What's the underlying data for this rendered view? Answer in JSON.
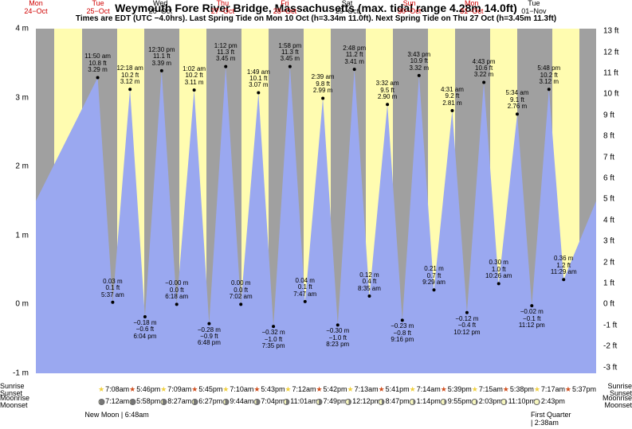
{
  "title": "Weymouth Fore River Bridge, Massachusetts (max. tidal range 4.28m 14.0ft)",
  "subtitle": "Times are EDT (UTC −4.0hrs). Last Spring Tide on Mon 10 Oct (h=3.34m 11.0ft). Next Spring Tide on Thu 27 Oct (h=3.45m 11.3ft)",
  "chart": {
    "type": "tide",
    "background_day": "#fffcb0",
    "background_night": "#a0a0a0",
    "tide_fill": "#9aa8f0",
    "title_fontsize": 14,
    "subtitle_fontsize": 10,
    "label_fontsize": 9,
    "axis_fontsize": 10,
    "y_axis_left": {
      "min": -1,
      "max": 4,
      "step": 1,
      "unit": "m"
    },
    "y_axis_right": {
      "min": -3,
      "max": 13,
      "step": 1,
      "unit": "ft"
    },
    "days": [
      {
        "top_line1": "Mon",
        "top_line2": "24−Oct",
        "top_color": "#d00000",
        "sunrise": "",
        "sunset": "",
        "moonrise": "",
        "moonset": ""
      },
      {
        "top_line1": "Tue",
        "top_line2": "25−Oct",
        "top_color": "#d00000",
        "sunrise": "7:08am",
        "sunset": "5:46pm",
        "moonrise": "7:12am",
        "moonset": "5:58pm"
      },
      {
        "top_line1": "Wed",
        "top_line2": "26−Oct",
        "top_color": "#000000",
        "sunrise": "7:09am",
        "sunset": "5:45pm",
        "moonrise": "8:27am",
        "moonset": "6:27pm"
      },
      {
        "top_line1": "Thu",
        "top_line2": "27−Oct",
        "top_color": "#d00000",
        "sunrise": "7:10am",
        "sunset": "5:43pm",
        "moonrise": "9:44am",
        "moonset": "7:04pm"
      },
      {
        "top_line1": "Fri",
        "top_line2": "28−Oct",
        "top_color": "#d00000",
        "sunrise": "7:12am",
        "sunset": "5:42pm",
        "moonrise": "11:01am",
        "moonset": "7:49pm"
      },
      {
        "top_line1": "Sat",
        "top_line2": "29−Oct",
        "top_color": "#000000",
        "sunrise": "7:13am",
        "sunset": "5:41pm",
        "moonrise": "12:12pm",
        "moonset": "8:47pm"
      },
      {
        "top_line1": "Sun",
        "top_line2": "30−Oct",
        "top_color": "#d00000",
        "sunrise": "7:14am",
        "sunset": "5:39pm",
        "moonrise": "1:14pm",
        "moonset": "9:55pm"
      },
      {
        "top_line1": "Mon",
        "top_line2": "31−Oct",
        "top_color": "#d00000",
        "sunrise": "7:15am",
        "sunset": "5:38pm",
        "moonrise": "2:03pm",
        "moonset": "11:10pm"
      },
      {
        "top_line1": "Tue",
        "top_line2": "01−Nov",
        "top_color": "#000000",
        "sunrise": "7:17am",
        "sunset": "5:37pm",
        "moonrise": "2:43pm",
        "moonset": ""
      }
    ],
    "sunrise_icon_color": "#f0d040",
    "sunset_icon_color": "#d05020",
    "moon_icon_fill": "#f8f8c0",
    "tide_points": [
      {
        "day": 0,
        "hour": 23.83,
        "h_m": 3.29,
        "labels": [
          "11:50 am",
          "10.8 ft",
          "3.29 m"
        ],
        "side": "top_above"
      },
      {
        "day": 1,
        "hour": 5.62,
        "h_m": 0.03,
        "labels": [
          "0.03 m",
          "0.1 ft",
          "5:37 am"
        ],
        "side": "bot_above"
      },
      {
        "day": 1,
        "hour": 12.3,
        "h_m": 3.12,
        "labels": [
          "12:18 am",
          "10.2 ft",
          "3.12 m"
        ],
        "side": "top_above"
      },
      {
        "day": 1,
        "hour": 18.07,
        "h_m": -0.18,
        "labels": [
          "−0.18 m",
          "−0.6 ft",
          "6:04 pm"
        ],
        "side": "bot_below"
      },
      {
        "day": 2,
        "hour": 0.5,
        "h_m": 3.39,
        "labels": [
          "12:30 pm",
          "11.1 ft",
          "3.39 m"
        ],
        "side": "top_above"
      },
      {
        "day": 2,
        "hour": 6.3,
        "h_m": 0.0,
        "labels": [
          "−0.00 m",
          "0.0 ft",
          "6:18 am"
        ],
        "side": "bot_above"
      },
      {
        "day": 2,
        "hour": 13.03,
        "h_m": 3.11,
        "labels": [
          "1:02 am",
          "10.2 ft",
          "3.11 m"
        ],
        "side": "top_above"
      },
      {
        "day": 2,
        "hour": 18.8,
        "h_m": -0.28,
        "labels": [
          "−0.28 m",
          "−0.9 ft",
          "6:48 pm"
        ],
        "side": "bot_below"
      },
      {
        "day": 3,
        "hour": 1.2,
        "h_m": 3.45,
        "labels": [
          "1:12 pm",
          "11.3 ft",
          "3.45 m"
        ],
        "side": "top_above"
      },
      {
        "day": 3,
        "hour": 7.03,
        "h_m": 0.0,
        "labels": [
          "0.00 m",
          "0.0 ft",
          "7:02 am"
        ],
        "side": "bot_above"
      },
      {
        "day": 3,
        "hour": 13.82,
        "h_m": 3.07,
        "labels": [
          "1:49 am",
          "10.1 ft",
          "3.07 m"
        ],
        "side": "top_above"
      },
      {
        "day": 3,
        "hour": 19.58,
        "h_m": -0.32,
        "labels": [
          "−0.32 m",
          "−1.0 ft",
          "7:35 pm"
        ],
        "side": "bot_below"
      },
      {
        "day": 4,
        "hour": 1.97,
        "h_m": 3.45,
        "labels": [
          "1:58 pm",
          "11.3 ft",
          "3.45 m"
        ],
        "side": "top_above"
      },
      {
        "day": 4,
        "hour": 7.78,
        "h_m": 0.04,
        "labels": [
          "0.04 m",
          "0.1 ft",
          "7:47 am"
        ],
        "side": "bot_above"
      },
      {
        "day": 4,
        "hour": 14.65,
        "h_m": 2.99,
        "labels": [
          "2:39 am",
          "9.8 ft",
          "2.99 m"
        ],
        "side": "top_above"
      },
      {
        "day": 4,
        "hour": 20.38,
        "h_m": -0.3,
        "labels": [
          "−0.30 m",
          "−1.0 ft",
          "8:23 pm"
        ],
        "side": "bot_below"
      },
      {
        "day": 5,
        "hour": 2.8,
        "h_m": 3.41,
        "labels": [
          "2:48 pm",
          "11.2 ft",
          "3.41 m"
        ],
        "side": "top_above"
      },
      {
        "day": 5,
        "hour": 8.58,
        "h_m": 0.12,
        "labels": [
          "0.12 m",
          "0.4 ft",
          "8:35 am"
        ],
        "side": "bot_above"
      },
      {
        "day": 5,
        "hour": 15.53,
        "h_m": 2.9,
        "labels": [
          "3:32 am",
          "9.5 ft",
          "2.90 m"
        ],
        "side": "top_above"
      },
      {
        "day": 5,
        "hour": 21.27,
        "h_m": -0.23,
        "labels": [
          "−0.23 m",
          "−0.8 ft",
          "9:16 pm"
        ],
        "side": "bot_below"
      },
      {
        "day": 6,
        "hour": 3.72,
        "h_m": 3.32,
        "labels": [
          "3:43 pm",
          "10.9 ft",
          "3.32 m"
        ],
        "side": "top_above"
      },
      {
        "day": 6,
        "hour": 9.48,
        "h_m": 0.21,
        "labels": [
          "0.21 m",
          "0.7 ft",
          "9:29 am"
        ],
        "side": "bot_above"
      },
      {
        "day": 6,
        "hour": 16.52,
        "h_m": 2.81,
        "labels": [
          "4:31 am",
          "9.2 ft",
          "2.81 m"
        ],
        "side": "top_above"
      },
      {
        "day": 6,
        "hour": 22.2,
        "h_m": -0.12,
        "labels": [
          "−0.12 m",
          "−0.4 ft",
          "10:12 pm"
        ],
        "side": "bot_below"
      },
      {
        "day": 7,
        "hour": 4.72,
        "h_m": 3.22,
        "labels": [
          "4:43 pm",
          "10.6 ft",
          "3.22 m"
        ],
        "side": "top_above"
      },
      {
        "day": 7,
        "hour": 10.43,
        "h_m": 0.3,
        "labels": [
          "0.30 m",
          "1.0 ft",
          "10:26 am"
        ],
        "side": "bot_above"
      },
      {
        "day": 7,
        "hour": 17.57,
        "h_m": 2.76,
        "labels": [
          "5:34 am",
          "9.1 ft",
          "2.76 m"
        ],
        "side": "top_above"
      },
      {
        "day": 7,
        "hour": 23.2,
        "h_m": -0.02,
        "labels": [
          "−0.02 m",
          "−0.1 ft",
          "11:12 pm"
        ],
        "side": "bot_below"
      },
      {
        "day": 8,
        "hour": 5.8,
        "h_m": 3.12,
        "labels": [
          "5:48 pm",
          "10.2 ft",
          "3.12 m"
        ],
        "side": "top_above"
      },
      {
        "day": 8,
        "hour": 11.48,
        "h_m": 0.36,
        "labels": [
          "0.36 m",
          "1.2 ft",
          "11:29 am"
        ],
        "side": "bot_above"
      }
    ],
    "moon_phases": [
      {
        "label": "New Moon | 6:48am",
        "day": 1
      },
      {
        "label": "First Quarter | 2:38am",
        "day": 8
      }
    ],
    "row_labels": {
      "sunrise": "Sunrise",
      "sunset": "Sunset",
      "moonrise": "Moonrise",
      "moonset": "Moonset"
    }
  }
}
